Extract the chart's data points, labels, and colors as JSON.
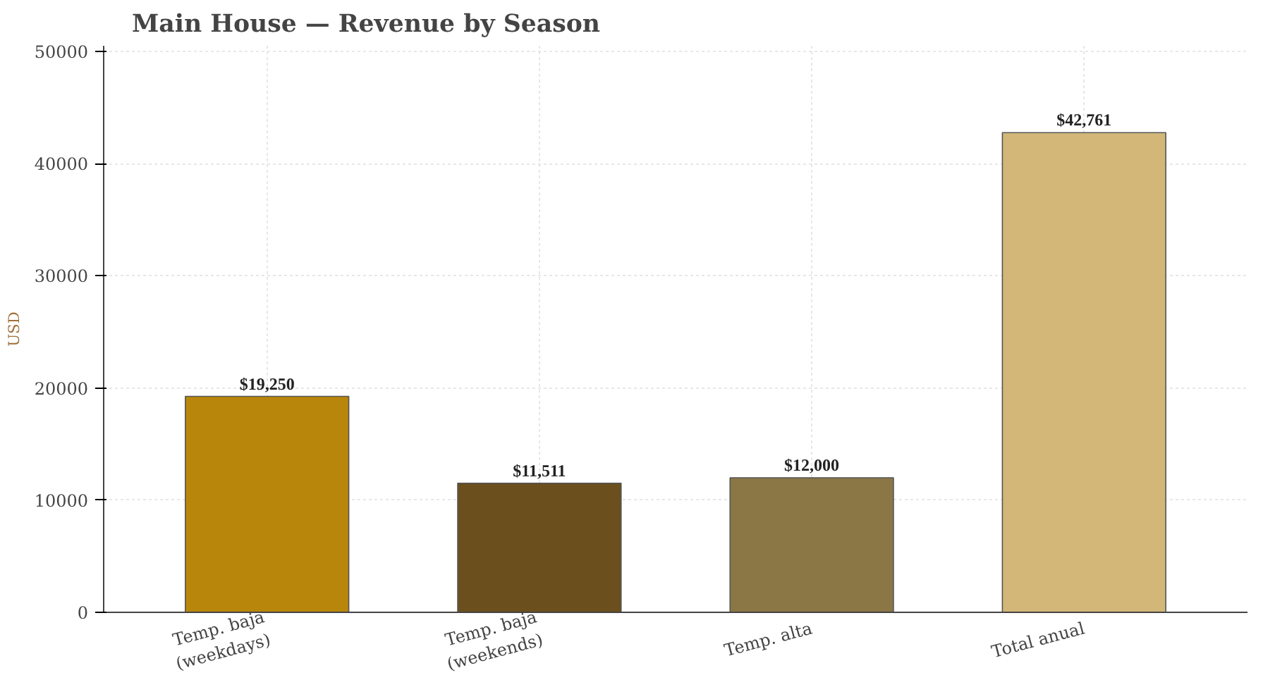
{
  "chart_data": {
    "type": "bar",
    "title": "Main House — Revenue by Season",
    "ylabel": "USD",
    "categories": [
      "Temp. baja\n(weekdays)",
      "Temp. baja\n(weekends)",
      "Temp. alta",
      "Total anual"
    ],
    "values": [
      19250,
      11511,
      12000,
      42761
    ],
    "colors": [
      "#b8860b",
      "#6b4f1d",
      "#8b7646",
      "#d2b778"
    ],
    "value_labels": [
      "$19,250",
      "$11,511",
      "$12,000",
      "$42,761"
    ],
    "ylim": [
      0,
      50500
    ],
    "yticks": [
      0,
      10000,
      20000,
      30000,
      40000,
      50000
    ],
    "grid": true
  }
}
